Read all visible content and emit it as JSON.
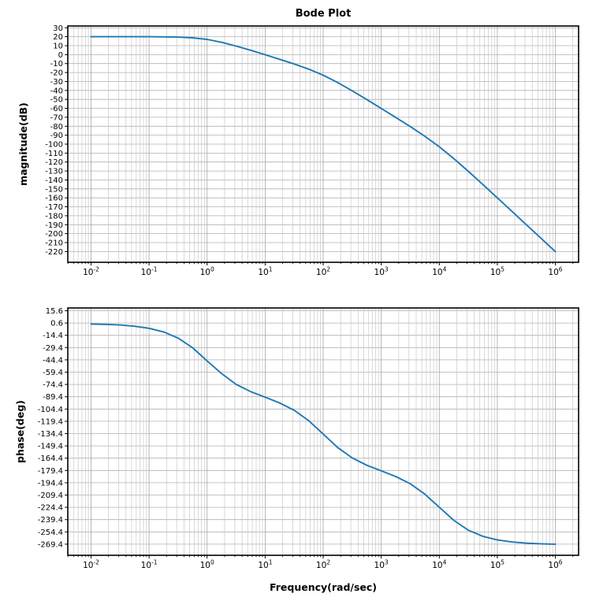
{
  "colors": {
    "line": "#1f77b4",
    "grid_major": "#b0b0b0",
    "grid_minor": "#c8c8c8",
    "spine": "#000000",
    "background": "#ffffff",
    "text": "#000000"
  },
  "chart_data": [
    {
      "name": "magnitude",
      "type": "line",
      "title": "Bode Plot",
      "ylabel": "magnitude(dB)",
      "xscale": "log",
      "x_tick_base": "10",
      "x_tick_exponents": [
        -2,
        -1,
        0,
        1,
        2,
        3,
        4,
        5,
        6
      ],
      "xlim_log10": [
        -2.4,
        6.4
      ],
      "ylim": [
        -232,
        32
      ],
      "yticks": [
        30,
        20,
        10,
        0,
        -10,
        -20,
        -30,
        -40,
        -50,
        -60,
        -70,
        -80,
        -90,
        -100,
        -110,
        -120,
        -130,
        -140,
        -150,
        -160,
        -170,
        -180,
        -190,
        -200,
        -210,
        -220
      ],
      "ytick_decimals": 0,
      "grid": "both",
      "series": [
        {
          "name": "magnitude",
          "color": "#1f77b4",
          "points_log10x_y": [
            [
              -2.0,
              20.0
            ],
            [
              -1.75,
              20.0
            ],
            [
              -1.5,
              20.0
            ],
            [
              -1.25,
              20.0
            ],
            [
              -1.0,
              20.0
            ],
            [
              -0.75,
              19.9
            ],
            [
              -0.5,
              19.6
            ],
            [
              -0.25,
              18.8
            ],
            [
              0.0,
              17.0
            ],
            [
              0.25,
              13.8
            ],
            [
              0.5,
              9.6
            ],
            [
              0.75,
              4.9
            ],
            [
              1.0,
              -0.1
            ],
            [
              1.25,
              -5.2
            ],
            [
              1.5,
              -10.4
            ],
            [
              1.75,
              -16.2
            ],
            [
              2.0,
              -23.0
            ],
            [
              2.25,
              -31.2
            ],
            [
              2.5,
              -40.4
            ],
            [
              2.75,
              -50.1
            ],
            [
              3.0,
              -60.1
            ],
            [
              3.25,
              -70.2
            ],
            [
              3.5,
              -80.4
            ],
            [
              3.75,
              -91.2
            ],
            [
              4.0,
              -103.0
            ],
            [
              4.25,
              -116.2
            ],
            [
              4.5,
              -130.4
            ],
            [
              4.75,
              -145.1
            ],
            [
              5.0,
              -160.0
            ],
            [
              5.25,
              -175.0
            ],
            [
              5.5,
              -190.0
            ],
            [
              5.75,
              -205.0
            ],
            [
              6.0,
              -220.0
            ]
          ]
        }
      ]
    },
    {
      "name": "phase",
      "type": "line",
      "ylabel": "phase(deg)",
      "xlabel": "Frequency(rad/sec)",
      "xscale": "log",
      "x_tick_base": "10",
      "x_tick_exponents": [
        -2,
        -1,
        0,
        1,
        2,
        3,
        4,
        5,
        6
      ],
      "xlim_log10": [
        -2.4,
        6.4
      ],
      "ylim": [
        -283,
        19
      ],
      "yticks": [
        15.6,
        0.6,
        -14.4,
        -29.4,
        -44.4,
        -59.4,
        -74.4,
        -89.4,
        -104.4,
        -119.4,
        -134.4,
        -149.4,
        -164.4,
        -179.4,
        -194.4,
        -209.4,
        -224.4,
        -239.4,
        -254.4,
        -269.4
      ],
      "ytick_decimals": 1,
      "grid": "both",
      "series": [
        {
          "name": "phase",
          "color": "#1f77b4",
          "points_log10x_y": [
            [
              -2.0,
              -0.6
            ],
            [
              -1.75,
              -1.0
            ],
            [
              -1.5,
              -1.8
            ],
            [
              -1.25,
              -3.3
            ],
            [
              -1.0,
              -5.8
            ],
            [
              -0.75,
              -10.2
            ],
            [
              -0.5,
              -17.7
            ],
            [
              -0.25,
              -29.6
            ],
            [
              0.0,
              -45.6
            ],
            [
              0.25,
              -61.1
            ],
            [
              0.5,
              -74.3
            ],
            [
              0.75,
              -83.1
            ],
            [
              1.0,
              -90.0
            ],
            [
              1.25,
              -97.0
            ],
            [
              1.5,
              -105.9
            ],
            [
              1.75,
              -118.6
            ],
            [
              2.0,
              -135.0
            ],
            [
              2.25,
              -151.4
            ],
            [
              2.5,
              -164.1
            ],
            [
              2.75,
              -173.0
            ],
            [
              3.0,
              -179.9
            ],
            [
              3.25,
              -186.8
            ],
            [
              3.5,
              -195.7
            ],
            [
              3.75,
              -208.3
            ],
            [
              4.0,
              -224.4
            ],
            [
              4.25,
              -240.3
            ],
            [
              4.5,
              -252.3
            ],
            [
              4.75,
              -259.8
            ],
            [
              5.0,
              -264.2
            ],
            [
              5.25,
              -266.7
            ],
            [
              5.5,
              -268.2
            ],
            [
              5.75,
              -269.0
            ],
            [
              6.0,
              -269.4
            ]
          ]
        }
      ]
    }
  ]
}
